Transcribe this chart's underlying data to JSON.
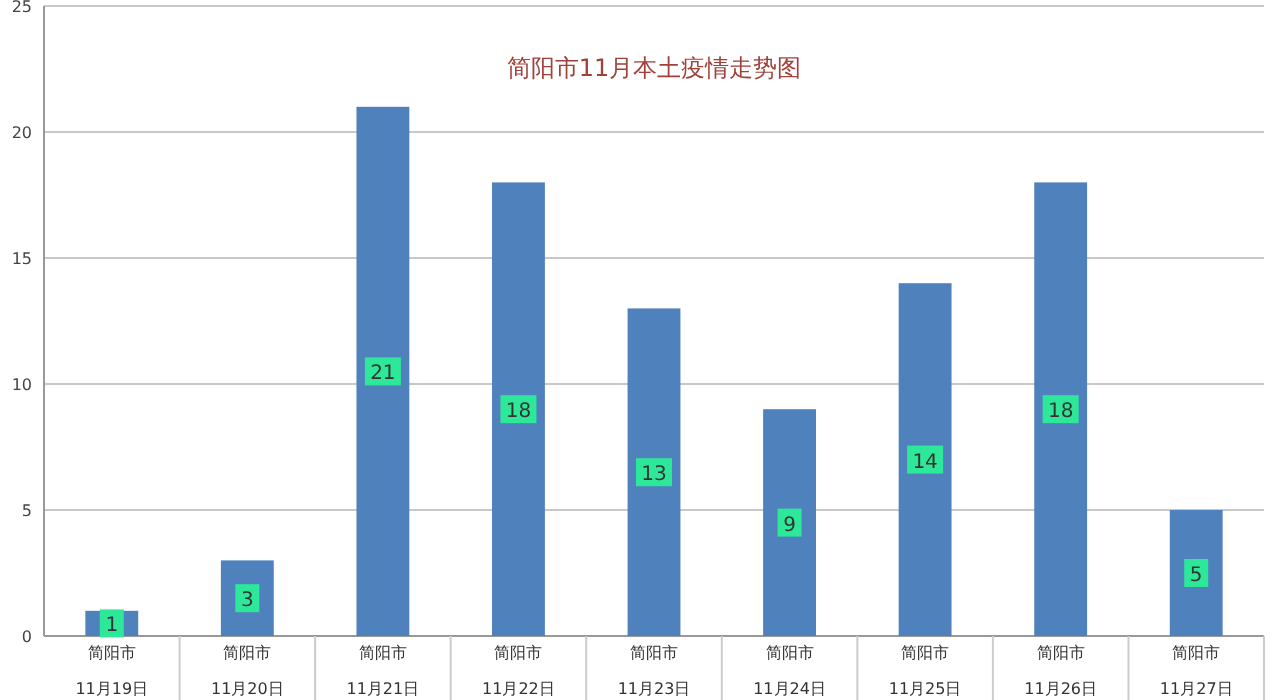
{
  "chart_data": {
    "type": "bar",
    "title": "简阳市11月本土疫情走势图",
    "categories": [
      "简阳市\n11月19日",
      "简阳市\n11月20日",
      "简阳市\n11月21日",
      "简阳市\n11月22日",
      "简阳市\n11月23日",
      "简阳市\n11月24日",
      "简阳市\n11月25日",
      "简阳市\n11月26日",
      "简阳市\n11月27日"
    ],
    "values": [
      1,
      3,
      21,
      18,
      13,
      9,
      14,
      18,
      5
    ],
    "color": "#4f81bd",
    "ylim": [
      0,
      25
    ],
    "yticks": [
      0,
      5,
      10,
      15,
      20,
      25
    ],
    "grid": "y",
    "data_labels": true
  }
}
